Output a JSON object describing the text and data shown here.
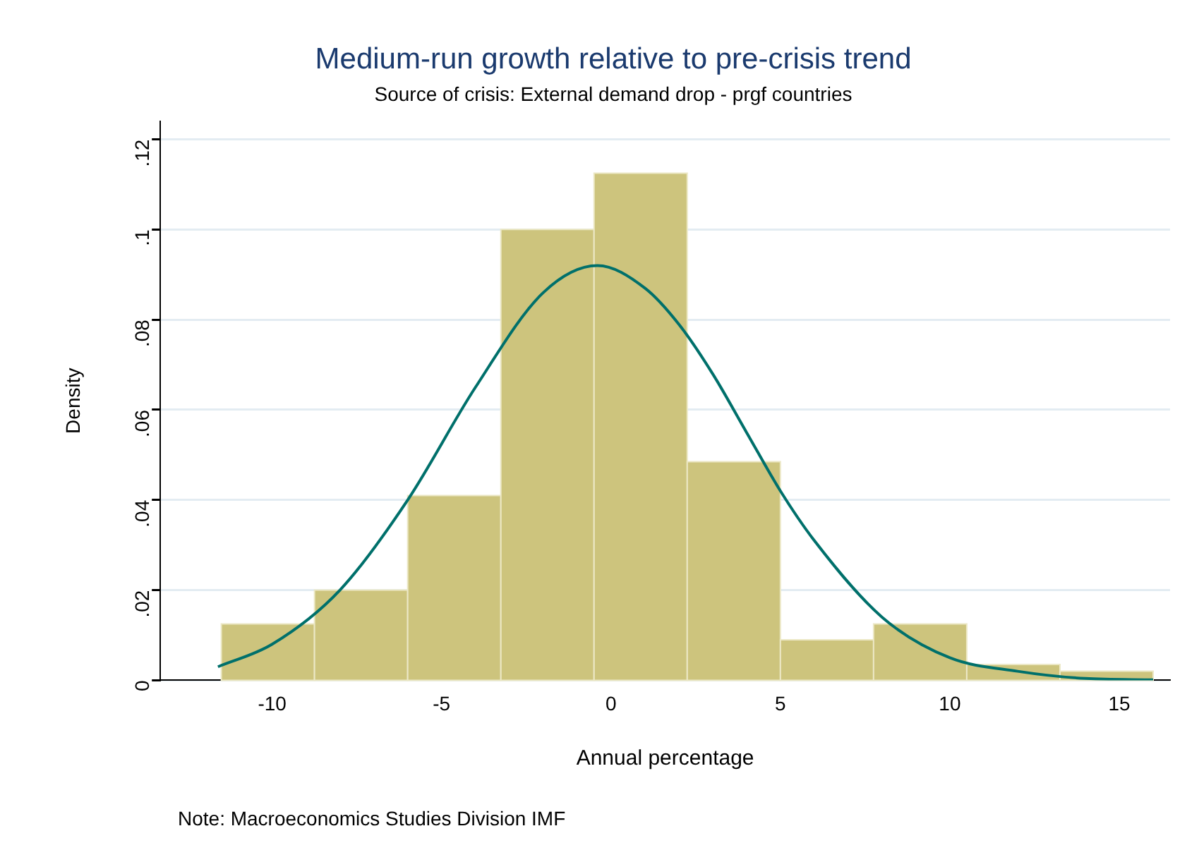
{
  "chart_data": {
    "type": "histogram",
    "title": "Medium-run growth relative to pre-crisis trend",
    "subtitle": "Source of crisis: External demand drop - prgf countries",
    "xlabel": "Annual percentage",
    "ylabel": "Density",
    "annotations": [
      "Note: Macroeconomics Studies Division IMF"
    ],
    "bins": [
      -11.5,
      -8.75,
      -6,
      -3.25,
      -0.5,
      2.25,
      5,
      7.75,
      10.5,
      13.25,
      16
    ],
    "values": [
      0.0125,
      0.02,
      0.041,
      0.1,
      0.1125,
      0.0485,
      0.009,
      0.0125,
      0.0035,
      0.002
    ],
    "color": "#cdc47d",
    "series": [
      {
        "type": "line",
        "color": "#00706b",
        "x": [
          -11.6,
          -10,
          -8,
          -6,
          -4,
          -2,
          -0.4,
          1,
          2,
          3,
          4,
          5,
          6,
          8,
          10,
          12,
          14,
          16
        ],
        "values": [
          0.003,
          0.008,
          0.02,
          0.04,
          0.065,
          0.086,
          0.092,
          0.087,
          0.079,
          0.068,
          0.055,
          0.042,
          0.031,
          0.014,
          0.005,
          0.002,
          0.0004,
          0.0001
        ]
      }
    ],
    "xlim": [
      -13.3,
      16.5
    ],
    "xticks": [
      -10,
      -5,
      0,
      5,
      10,
      15
    ],
    "ylim": [
      0,
      0.124
    ],
    "yticks": [
      0,
      {
        "value": 0.02,
        "label": ".02"
      },
      {
        "value": 0.04,
        "label": ".04"
      },
      {
        "value": 0.06,
        "label": ".06"
      },
      {
        "value": 0.08,
        "label": ".08"
      },
      {
        "value": 0.1,
        "label": ".1"
      },
      {
        "value": 0.12,
        "label": ".12"
      }
    ],
    "grid": "y",
    "legend": false
  }
}
